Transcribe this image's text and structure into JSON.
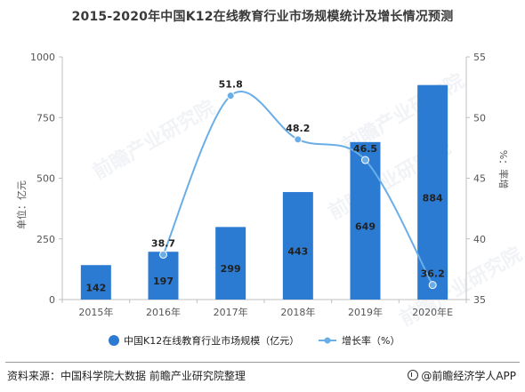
{
  "title": "2015-2020年中国K12在线教育行业市场规模统计及增长情况预测",
  "source": "资料来源：中国科学院大数据 前瞻产业研究院整理",
  "brand": "@前瞻经济学人APP",
  "watermark": "前瞻产业研究院",
  "colors": {
    "bar": "#2b7bd3",
    "line": "#6aaee8",
    "text": "#333333",
    "axis": "#bfbfbf"
  },
  "chart_data": {
    "type": "bar+line",
    "categories": [
      "2015年",
      "2016年",
      "2017年",
      "2018年",
      "2019年",
      "2020年E"
    ],
    "series": [
      {
        "name": "中国K12在线教育行业市场规模（亿元）",
        "type": "bar",
        "axis": "left",
        "values": [
          142,
          197,
          299,
          443,
          649,
          884
        ]
      },
      {
        "name": "增长率（%）",
        "type": "line",
        "axis": "right",
        "values": [
          null,
          38.7,
          51.8,
          48.2,
          46.5,
          36.2
        ]
      }
    ],
    "ylabel_left": "单位：亿元",
    "ylabel_right": "%：率增",
    "ylim_left": [
      0,
      1000
    ],
    "yticks_left": [
      0,
      250,
      500,
      750,
      1000
    ],
    "ylim_right": [
      35,
      55
    ],
    "yticks_right": [
      35,
      40,
      45,
      50,
      55
    ],
    "grid": false,
    "legend_position": "bottom"
  }
}
